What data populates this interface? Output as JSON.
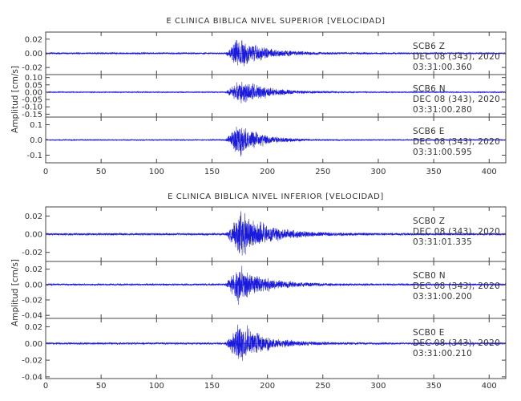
{
  "chart_data": [
    {
      "type": "line",
      "title": "E CLINICA BIBLICA NIVEL SUPERIOR [VELOCIDAD]",
      "ylabel": "Amplitud [cm/s]",
      "xlim": [
        0,
        415
      ],
      "xticks": [
        "0",
        "50",
        "100",
        "150",
        "200",
        "250",
        "300",
        "350",
        "400"
      ],
      "color": "#1a1adf",
      "series": [
        {
          "name": "SCB6 Z",
          "station": "SCB6",
          "component": "Z",
          "date": "DEC 08 (343), 2020",
          "time": "03:31:00.360",
          "ylim": [
            -0.03,
            0.03
          ],
          "yticks": [
            "0.02",
            "0.00",
            "-0.02"
          ],
          "onset": 162,
          "peak_t": 175,
          "peak": 0.026,
          "noise": 0.0012,
          "decay": 22
        },
        {
          "name": "SCB6 N",
          "station": "SCB6",
          "component": "N",
          "date": "DEC 08 (343), 2020",
          "time": "03:31:00.280",
          "ylim": [
            -0.17,
            0.12
          ],
          "yticks": [
            "0.10",
            "0.05",
            "0.00",
            "-0.05",
            "-0.10",
            "-0.15"
          ],
          "onset": 162,
          "peak_t": 176,
          "peak": 0.1,
          "noise": 0.004,
          "decay": 24
        },
        {
          "name": "SCB6 E",
          "station": "SCB6",
          "component": "E",
          "date": "DEC 08 (343), 2020",
          "time": "03:31:00.595",
          "ylim": [
            -0.15,
            0.15
          ],
          "yticks": [
            "0.1",
            "0.0",
            "-0.1"
          ],
          "onset": 162,
          "peak_t": 175,
          "peak": 0.13,
          "noise": 0.004,
          "decay": 18
        }
      ]
    },
    {
      "type": "line",
      "title": "E CLINICA BIBLICA NIVEL INFERIOR [VELOCIDAD]",
      "ylabel": "Amplitud [cm/s]",
      "xlim": [
        0,
        415
      ],
      "xticks": [
        "0",
        "50",
        "100",
        "150",
        "200",
        "250",
        "300",
        "350",
        "400"
      ],
      "color": "#1a1adf",
      "series": [
        {
          "name": "SCB0 Z",
          "station": "SCB0",
          "component": "Z",
          "date": "DEC 08 (343), 2020",
          "time": "03:31:01.335",
          "ylim": [
            -0.03,
            0.03
          ],
          "yticks": [
            "0.02",
            "0.00",
            "-0.02"
          ],
          "onset": 162,
          "peak_t": 176,
          "peak": 0.028,
          "noise": 0.0012,
          "decay": 25
        },
        {
          "name": "SCB0 N",
          "station": "SCB0",
          "component": "N",
          "date": "DEC 08 (343), 2020",
          "time": "03:31:00.200",
          "ylim": [
            -0.044,
            0.03
          ],
          "yticks": [
            "0.02",
            "0.00",
            "-0.02",
            "-0.04"
          ],
          "onset": 162,
          "peak_t": 175,
          "peak": 0.028,
          "noise": 0.0012,
          "decay": 22
        },
        {
          "name": "SCB0 E",
          "station": "SCB0",
          "component": "E",
          "date": "DEC 08 (343), 2020",
          "time": "03:31:00.210",
          "ylim": [
            -0.042,
            0.03
          ],
          "yticks": [
            "0.02",
            "0.00",
            "-0.02",
            "-0.04"
          ],
          "onset": 162,
          "peak_t": 175,
          "peak": 0.029,
          "noise": 0.0012,
          "decay": 22
        }
      ]
    }
  ]
}
